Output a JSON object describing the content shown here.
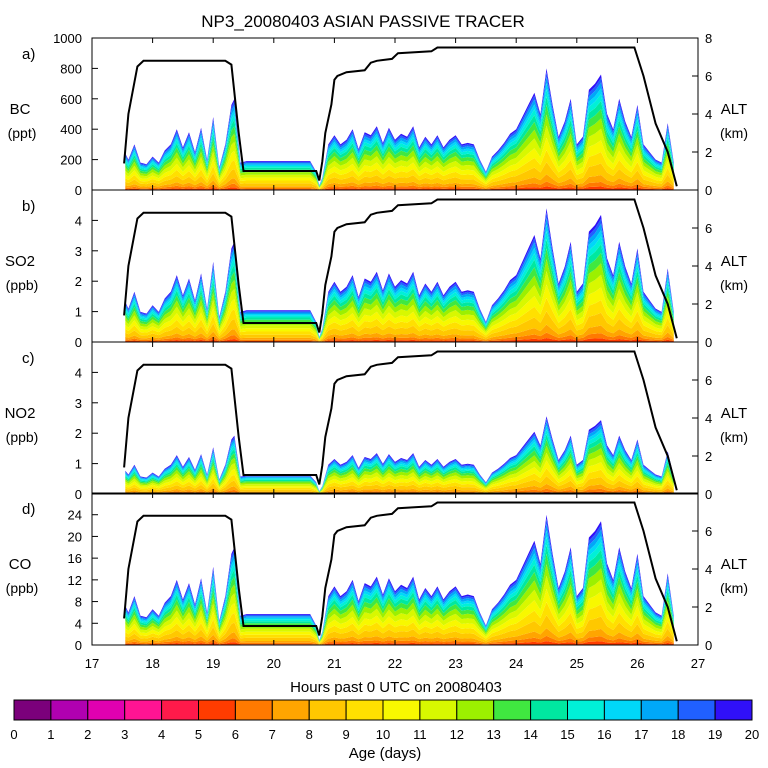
{
  "figure": {
    "title": "NP3_20080403 ASIAN PASSIVE TRACER",
    "xlabel": "Hours past 0 UTC on 20080403",
    "x_ticks": [
      17,
      18,
      19,
      20,
      21,
      22,
      23,
      24,
      25,
      26,
      27
    ],
    "xlim": [
      17,
      27
    ],
    "colorbar": {
      "label": "Age (days)",
      "ticks": [
        0,
        1,
        2,
        3,
        4,
        5,
        6,
        7,
        8,
        9,
        10,
        11,
        12,
        13,
        14,
        15,
        16,
        17,
        18,
        19,
        20
      ],
      "colors": [
        "#7b007b",
        "#b000b0",
        "#e000b0",
        "#ff1493",
        "#ff1a4a",
        "#ff3c00",
        "#ff7a00",
        "#ffa500",
        "#ffc800",
        "#ffe000",
        "#f8f800",
        "#d8f800",
        "#9cf000",
        "#40e840",
        "#00e8a0",
        "#00f0d8",
        "#00d8f8",
        "#00a8f8",
        "#2060ff",
        "#3010f8"
      ]
    }
  },
  "chart_data": [
    {
      "panel": "a)",
      "type": "area",
      "ylabel": "BC",
      "yunit": "(ppt)",
      "ylim": [
        0,
        1000
      ],
      "yticks": [
        0,
        200,
        400,
        600,
        800,
        1000
      ],
      "y2label": "ALT",
      "y2unit": "(km)",
      "y2lim": [
        0,
        8
      ],
      "y2ticks": [
        0,
        2,
        4,
        6,
        8
      ]
    },
    {
      "panel": "b)",
      "type": "area",
      "ylabel": "SO2",
      "yunit": "(ppb)",
      "ylim": [
        0,
        5
      ],
      "yticks": [
        0,
        1,
        2,
        3,
        4
      ],
      "y2label": "ALT",
      "y2unit": "(km)",
      "y2lim": [
        0,
        8
      ],
      "y2ticks": [
        0,
        2,
        4,
        6
      ]
    },
    {
      "panel": "c)",
      "type": "area",
      "ylabel": "NO2",
      "yunit": "(ppb)",
      "ylim": [
        0,
        5
      ],
      "yticks": [
        0,
        1,
        2,
        3,
        4
      ],
      "y2label": "ALT",
      "y2unit": "(km)",
      "y2lim": [
        0,
        8
      ],
      "y2ticks": [
        0,
        2,
        4,
        6
      ]
    },
    {
      "panel": "d)",
      "type": "area",
      "ylabel": "CO",
      "yunit": "(ppb)",
      "ylim": [
        0,
        28
      ],
      "yticks": [
        0,
        4,
        8,
        12,
        16,
        20,
        24
      ],
      "y2label": "ALT",
      "y2unit": "(km)",
      "y2lim": [
        0,
        8
      ],
      "y2ticks": [
        0,
        2,
        4,
        6
      ]
    }
  ],
  "series_data": {
    "altitude": {
      "x": [
        17.53,
        17.6,
        17.75,
        17.85,
        19.2,
        19.3,
        19.42,
        19.5,
        20.7,
        20.75,
        20.8,
        20.85,
        20.95,
        21.0,
        21.05,
        21.2,
        21.5,
        21.6,
        21.7,
        21.95,
        22.05,
        22.6,
        22.7,
        22.8,
        25.95,
        26.1,
        26.3,
        26.5,
        26.65
      ],
      "y": [
        1.4,
        4.0,
        6.5,
        6.8,
        6.8,
        6.6,
        3.0,
        1.0,
        1.0,
        0.5,
        1.5,
        3.0,
        4.5,
        5.8,
        6.0,
        6.2,
        6.3,
        6.7,
        6.8,
        6.9,
        7.2,
        7.3,
        7.5,
        7.5,
        7.5,
        6.0,
        3.5,
        2.0,
        0.2
      ]
    },
    "tracer_bc_total": {
      "x": [
        17.55,
        17.6,
        17.7,
        17.8,
        17.9,
        18.0,
        18.1,
        18.2,
        18.3,
        18.4,
        18.5,
        18.6,
        18.7,
        18.8,
        18.9,
        19.0,
        19.1,
        19.2,
        19.3,
        19.35,
        19.45,
        19.55,
        20.6,
        20.7,
        20.75,
        20.8,
        20.9,
        21.0,
        21.1,
        21.2,
        21.3,
        21.4,
        21.5,
        21.6,
        21.7,
        21.8,
        21.9,
        22.0,
        22.1,
        22.2,
        22.3,
        22.4,
        22.5,
        22.6,
        22.7,
        22.8,
        22.9,
        23.0,
        23.1,
        23.2,
        23.3,
        23.4,
        23.5,
        23.6,
        23.7,
        23.8,
        23.9,
        24.0,
        24.1,
        24.2,
        24.3,
        24.4,
        24.5,
        24.6,
        24.7,
        24.8,
        24.9,
        25.0,
        25.1,
        25.2,
        25.3,
        25.4,
        25.5,
        25.6,
        25.7,
        25.8,
        25.9,
        26.0,
        26.1,
        26.2,
        26.3,
        26.4,
        26.5,
        26.6
      ],
      "y": [
        240,
        200,
        300,
        180,
        170,
        220,
        180,
        260,
        300,
        400,
        280,
        380,
        250,
        410,
        200,
        480,
        150,
        300,
        560,
        600,
        180,
        190,
        190,
        120,
        30,
        80,
        300,
        360,
        300,
        330,
        400,
        270,
        380,
        360,
        420,
        310,
        410,
        330,
        370,
        350,
        420,
        280,
        350,
        300,
        360,
        280,
        330,
        360,
        300,
        310,
        300,
        200,
        120,
        220,
        260,
        310,
        370,
        400,
        480,
        560,
        640,
        500,
        800,
        560,
        350,
        450,
        600,
        300,
        350,
        660,
        700,
        760,
        500,
        400,
        600,
        450,
        350,
        560,
        300,
        250,
        200,
        180,
        440,
        180
      ]
    },
    "panel_scale": [
      1.0,
      0.0055,
      0.0032,
      0.03
    ]
  }
}
